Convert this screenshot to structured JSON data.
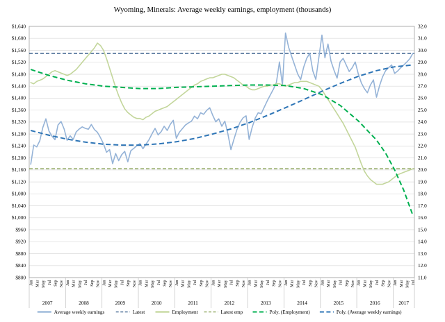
{
  "chart_data": {
    "type": "line",
    "title": "Wyoming, Minerals: Average weekly earnings, employment (thousands)",
    "years": [
      "2007",
      "2008",
      "2009",
      "2010",
      "2011",
      "2012",
      "2013",
      "2014",
      "2015",
      "2016",
      "2017"
    ],
    "month_ticks": [
      "Jan",
      "Mar",
      "May",
      "Jul",
      "Sep",
      "Nov"
    ],
    "left_axis": {
      "min": 800,
      "max": 1640,
      "step": 40,
      "prefix": "$"
    },
    "right_axis": {
      "min": 11.0,
      "max": 32.0,
      "step": 1.0
    },
    "grid": "horizontal",
    "legend_position": "bottom",
    "series": [
      {
        "name": "Average weekly earnings",
        "axis": "left",
        "color": "#95B3D7",
        "width": 1.6,
        "dash": "",
        "values": [
          1179,
          1243,
          1237,
          1258,
          1302,
          1331,
          1290,
          1273,
          1261,
          1310,
          1322,
          1297,
          1259,
          1274,
          1262,
          1287,
          1297,
          1304,
          1299,
          1296,
          1312,
          1295,
          1286,
          1268,
          1247,
          1219,
          1228,
          1181,
          1215,
          1191,
          1211,
          1222,
          1187,
          1224,
          1232,
          1241,
          1248,
          1231,
          1246,
          1261,
          1281,
          1299,
          1277,
          1288,
          1306,
          1292,
          1312,
          1326,
          1266,
          1286,
          1298,
          1310,
          1317,
          1323,
          1340,
          1331,
          1351,
          1346,
          1359,
          1368,
          1343,
          1321,
          1331,
          1306,
          1323,
          1281,
          1228,
          1262,
          1295,
          1319,
          1334,
          1341,
          1262,
          1302,
          1333,
          1351,
          1348,
          1370,
          1391,
          1411,
          1430,
          1452,
          1521,
          1443,
          1618,
          1571,
          1541,
          1511,
          1481,
          1462,
          1504,
          1533,
          1550,
          1491,
          1463,
          1536,
          1611,
          1535,
          1581,
          1524,
          1493,
          1467,
          1521,
          1533,
          1511,
          1489,
          1502,
          1521,
          1481,
          1451,
          1432,
          1418,
          1444,
          1461,
          1403,
          1441,
          1471,
          1492,
          1502,
          1511,
          1483,
          1491,
          1502,
          1511,
          1521,
          1532,
          1550
        ]
      },
      {
        "name": "Employment",
        "axis": "right",
        "color": "#C3D69B",
        "width": 1.6,
        "dash": "",
        "values": [
          27.3,
          27.2,
          27.4,
          27.5,
          27.6,
          27.8,
          28.0,
          28.2,
          28.3,
          28.2,
          28.1,
          28.0,
          27.9,
          28.0,
          28.2,
          28.4,
          28.7,
          29.0,
          29.3,
          29.6,
          29.9,
          30.2,
          30.6,
          30.4,
          30.0,
          29.3,
          28.5,
          27.7,
          26.9,
          26.2,
          25.6,
          25.1,
          24.8,
          24.6,
          24.4,
          24.3,
          24.3,
          24.2,
          24.4,
          24.5,
          24.7,
          24.9,
          25.0,
          25.1,
          25.2,
          25.3,
          25.5,
          25.7,
          25.9,
          26.1,
          26.3,
          26.5,
          26.7,
          26.9,
          27.1,
          27.2,
          27.4,
          27.5,
          27.6,
          27.7,
          27.7,
          27.8,
          27.9,
          28.0,
          28.0,
          27.9,
          27.8,
          27.7,
          27.5,
          27.3,
          27.1,
          27.0,
          26.8,
          26.7,
          26.7,
          26.8,
          26.9,
          27.0,
          27.0,
          27.1,
          27.1,
          27.2,
          27.2,
          27.1,
          27.0,
          27.1,
          27.2,
          27.3,
          27.3,
          27.4,
          27.4,
          27.4,
          27.3,
          27.2,
          27.1,
          27.0,
          26.7,
          26.3,
          25.9,
          25.5,
          25.1,
          24.7,
          24.3,
          23.9,
          23.4,
          22.9,
          22.4,
          21.9,
          21.2,
          20.5,
          19.9,
          19.5,
          19.2,
          19.0,
          18.8,
          18.8,
          18.8,
          18.9,
          19.0,
          19.2,
          19.4,
          19.6,
          19.7,
          19.8,
          19.9,
          20.0,
          20.1
        ]
      }
    ],
    "reference_lines": [
      {
        "name": "Latest",
        "axis": "left",
        "value": 1550,
        "color": "#1F497D",
        "dash": "5 3",
        "width": 1.3
      },
      {
        "name": "Latest emp",
        "axis": "right",
        "value": 20.1,
        "color": "#77933C",
        "dash": "5 3",
        "width": 1.3
      }
    ],
    "trend_lines": [
      {
        "name": "Poly. (Employment)",
        "axis": "right",
        "color": "#00B050",
        "dash": "7 4",
        "width": 2,
        "points": [
          [
            0,
            28.4
          ],
          [
            6,
            27.9
          ],
          [
            12,
            27.5
          ],
          [
            18,
            27.2
          ],
          [
            24,
            27.0
          ],
          [
            30,
            26.9
          ],
          [
            36,
            26.8
          ],
          [
            42,
            26.8
          ],
          [
            48,
            26.9
          ],
          [
            54,
            26.95
          ],
          [
            60,
            27.0
          ],
          [
            66,
            27.05
          ],
          [
            72,
            27.1
          ],
          [
            78,
            27.1
          ],
          [
            84,
            27.05
          ],
          [
            90,
            26.8
          ],
          [
            96,
            26.3
          ],
          [
            102,
            25.4
          ],
          [
            108,
            24.1
          ],
          [
            114,
            22.5
          ],
          [
            117,
            21.4
          ],
          [
            120,
            20.0
          ],
          [
            123,
            18.3
          ],
          [
            126,
            16.2
          ]
        ]
      },
      {
        "name": "Poly. (Average weekly earnings)",
        "axis": "left",
        "color": "#2E75B6",
        "dash": "7 4",
        "width": 2,
        "points": [
          [
            0,
            1292
          ],
          [
            6,
            1276
          ],
          [
            12,
            1263
          ],
          [
            18,
            1253
          ],
          [
            24,
            1246
          ],
          [
            30,
            1243
          ],
          [
            36,
            1243
          ],
          [
            42,
            1247
          ],
          [
            48,
            1254
          ],
          [
            54,
            1265
          ],
          [
            60,
            1280
          ],
          [
            66,
            1297
          ],
          [
            72,
            1318
          ],
          [
            78,
            1342
          ],
          [
            84,
            1368
          ],
          [
            90,
            1395
          ],
          [
            96,
            1423
          ],
          [
            102,
            1449
          ],
          [
            108,
            1473
          ],
          [
            114,
            1492
          ],
          [
            120,
            1505
          ],
          [
            126,
            1511
          ]
        ]
      }
    ],
    "legend": [
      {
        "label": "Average weekly earnings",
        "color": "#95B3D7",
        "dash": "",
        "width": 2.2
      },
      {
        "label": "Latest",
        "color": "#1F497D",
        "dash": "4 2.5",
        "width": 1.3
      },
      {
        "label": "Employment",
        "color": "#C3D69B",
        "dash": "",
        "width": 2.2
      },
      {
        "label": "Latest emp",
        "color": "#77933C",
        "dash": "4 2.5",
        "width": 1.3
      },
      {
        "label": "Poly. (Employment)",
        "color": "#00B050",
        "dash": "6 3.5",
        "width": 2
      },
      {
        "label": "Poly. (Average weekly earnings)",
        "color": "#2E75B6",
        "dash": "6 3.5",
        "width": 2
      }
    ]
  }
}
